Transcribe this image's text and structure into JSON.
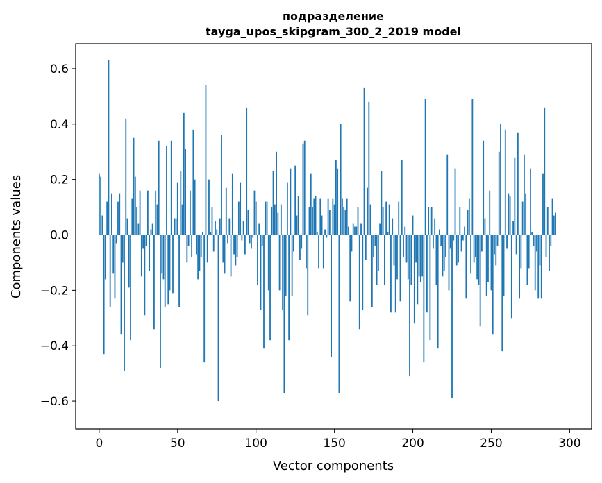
{
  "chart_data": {
    "type": "bar",
    "title": "подразделение",
    "subtitle": "tayga_upos_skipgram_300_2_2019 model",
    "xlabel": "Vector components",
    "ylabel": "Components values",
    "xlim": [
      -15,
      314
    ],
    "ylim": [
      -0.7,
      0.69
    ],
    "xticks": [
      0,
      50,
      100,
      150,
      200,
      250,
      300
    ],
    "yticks": [
      -0.6,
      -0.4,
      -0.2,
      0.0,
      0.2,
      0.4,
      0.6
    ],
    "xtick_labels": [
      "0",
      "50",
      "100",
      "150",
      "200",
      "250",
      "300"
    ],
    "ytick_labels": [
      "−0.6",
      "−0.4",
      "−0.2",
      "0.0",
      "0.2",
      "0.4",
      "0.6"
    ],
    "bar_color": "#1f77b4",
    "grid": false,
    "values": [
      0.22,
      0.21,
      0.07,
      -0.43,
      -0.16,
      0.12,
      0.63,
      -0.26,
      0.15,
      -0.14,
      -0.23,
      -0.03,
      0.12,
      0.15,
      -0.36,
      -0.1,
      -0.49,
      0.42,
      0.06,
      -0.19,
      -0.38,
      0.13,
      0.35,
      0.21,
      0.1,
      0.04,
      0.16,
      -0.15,
      -0.05,
      -0.29,
      -0.04,
      0.16,
      -0.13,
      0.02,
      0.04,
      -0.34,
      0.16,
      0.11,
      0.34,
      -0.48,
      -0.14,
      -0.16,
      -0.26,
      0.32,
      -0.25,
      -0.2,
      0.34,
      -0.21,
      0.06,
      0.06,
      0.19,
      -0.26,
      0.23,
      0.11,
      0.44,
      0.31,
      -0.1,
      -0.04,
      0.16,
      -0.08,
      0.38,
      0.2,
      -0.07,
      -0.16,
      -0.13,
      -0.08,
      0.01,
      -0.46,
      0.54,
      -0.1,
      0.2,
      0.01,
      0.1,
      -0.06,
      0.05,
      0.02,
      -0.6,
      0.06,
      0.36,
      -0.1,
      -0.14,
      0.17,
      -0.03,
      0.06,
      -0.15,
      0.22,
      -0.07,
      -0.11,
      -0.08,
      0.12,
      0.19,
      -0.02,
      0.05,
      -0.07,
      0.46,
      0.09,
      -0.03,
      -0.05,
      -0.01,
      0.16,
      0.12,
      -0.18,
      0.04,
      -0.27,
      -0.04,
      -0.41,
      0.12,
      0.12,
      -0.2,
      -0.38,
      0.1,
      0.23,
      0.11,
      0.3,
      0.08,
      -0.2,
      0.11,
      -0.27,
      -0.57,
      -0.22,
      0.19,
      -0.38,
      0.24,
      -0.22,
      -0.06,
      0.25,
      0.07,
      0.14,
      -0.09,
      -0.05,
      0.33,
      0.34,
      -0.12,
      -0.29,
      0.1,
      0.22,
      0.1,
      0.13,
      0.14,
      0.01,
      -0.12,
      0.13,
      0.07,
      -0.12,
      0.02,
      -0.01,
      0.13,
      0.09,
      -0.44,
      0.13,
      0.11,
      0.27,
      0.24,
      -0.57,
      0.4,
      0.13,
      0.1,
      0.09,
      0.13,
      0.03,
      -0.24,
      -0.06,
      0.04,
      0.03,
      0.03,
      0.1,
      -0.34,
      0.04,
      -0.27,
      0.53,
      -0.09,
      0.17,
      0.48,
      0.11,
      -0.26,
      -0.08,
      -0.04,
      -0.18,
      -0.13,
      0.04,
      0.23,
      0.1,
      -0.18,
      0.12,
      0.01,
      0.11,
      -0.28,
      0.06,
      -0.11,
      -0.28,
      -0.16,
      0.12,
      -0.24,
      0.27,
      -0.08,
      0.03,
      -0.1,
      -0.16,
      -0.51,
      -0.18,
      0.07,
      -0.32,
      -0.1,
      -0.25,
      -0.15,
      -0.17,
      -0.15,
      -0.46,
      0.49,
      -0.28,
      0.1,
      -0.38,
      0.1,
      -0.05,
      0.06,
      -0.18,
      -0.41,
      0.02,
      -0.04,
      -0.15,
      -0.13,
      -0.08,
      0.29,
      -0.2,
      -0.05,
      -0.59,
      -0.02,
      0.24,
      -0.11,
      -0.1,
      0.1,
      -0.06,
      -0.02,
      0.03,
      -0.23,
      0.09,
      0.13,
      -0.14,
      0.49,
      -0.1,
      -0.08,
      -0.16,
      -0.18,
      -0.33,
      -0.06,
      0.34,
      0.06,
      -0.22,
      -0.17,
      0.16,
      -0.2,
      -0.36,
      -0.07,
      -0.11,
      -0.04,
      0.3,
      0.4,
      -0.42,
      -0.22,
      0.38,
      -0.05,
      0.15,
      0.14,
      -0.3,
      0.05,
      0.28,
      -0.07,
      0.37,
      -0.23,
      -0.12,
      0.12,
      0.29,
      0.15,
      -0.18,
      -0.12,
      0.24,
      0.01,
      -0.04,
      -0.2,
      -0.06,
      -0.23,
      -0.11,
      -0.23,
      0.22,
      0.46,
      -0.08,
      0.1,
      -0.13,
      -0.04,
      0.13,
      0.07,
      0.08
    ]
  }
}
